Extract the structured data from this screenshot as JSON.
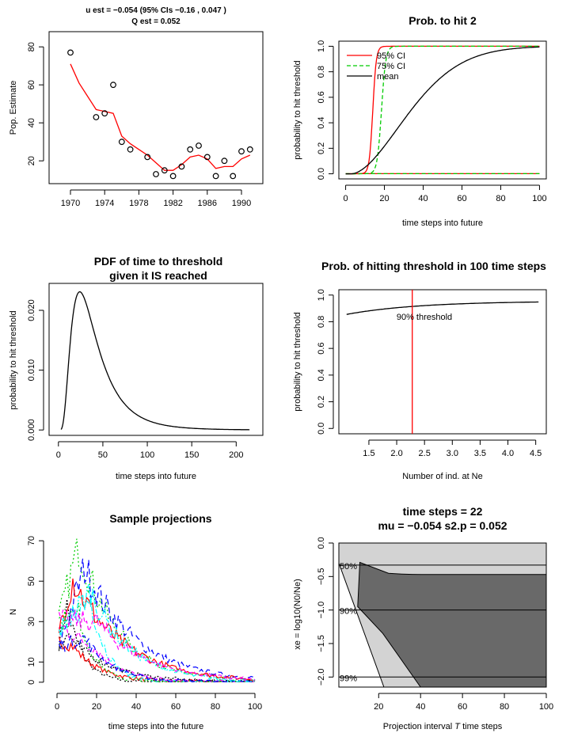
{
  "chart_data": [
    {
      "type": "line",
      "panel": "pop_estimate",
      "title_lines": [
        "u est =  −0.054  (95% CIs  −0.16 ,  0.047 )",
        "Q est =  0.052"
      ],
      "xlabel": "",
      "ylabel": "Pop. Estimate",
      "xlim": [
        1967.5,
        1992.5
      ],
      "ylim": [
        8,
        88
      ],
      "xticks": [
        "1970",
        "1974",
        "1978",
        "1982",
        "1986",
        "1990"
      ],
      "yticks": [
        "20",
        "40",
        "60",
        "80"
      ],
      "observed": {
        "x": [
          1970,
          1973,
          1974,
          1975,
          1976,
          1977,
          1979,
          1980,
          1981,
          1982,
          1983,
          1984,
          1985,
          1986,
          1987,
          1988,
          1989,
          1990,
          1991
        ],
        "y": [
          77,
          43,
          45,
          60,
          30,
          26,
          22,
          13,
          15,
          12,
          17,
          26,
          28,
          22,
          12,
          20,
          12,
          25,
          26
        ]
      },
      "fitted": {
        "x": [
          1970,
          1971,
          1972,
          1973,
          1974,
          1975,
          1976,
          1977,
          1978,
          1979,
          1980,
          1981,
          1982,
          1983,
          1984,
          1985,
          1986,
          1987,
          1988,
          1989,
          1990,
          1991
        ],
        "y": [
          71,
          61,
          54,
          47,
          46,
          45,
          33,
          29,
          26,
          23,
          19,
          15,
          15,
          18,
          22,
          23,
          21,
          16,
          17,
          17,
          21,
          23
        ]
      },
      "colors": {
        "fitted": "#ff0000",
        "observed": "#000000"
      }
    },
    {
      "type": "line",
      "panel": "prob_to_hit",
      "title": "Prob. to hit  2",
      "xlabel": "time steps into future",
      "ylabel": "probability to hit threshold",
      "xlim": [
        0,
        100
      ],
      "ylim": [
        0,
        1
      ],
      "xticks": [
        "0",
        "20",
        "40",
        "60",
        "80",
        "100"
      ],
      "yticks": [
        "0.0",
        "0.2",
        "0.4",
        "0.6",
        "0.8",
        "1.0"
      ],
      "legend": [
        "95% CI",
        "75% CI",
        "mean"
      ],
      "legend_position": "top-left",
      "colors": {
        "ci95": "#ff0000",
        "ci75": "#00cc00",
        "mean": "#000000"
      }
    },
    {
      "type": "line",
      "panel": "pdf_time_to_threshold",
      "title_lines": [
        "PDF of time to threshold",
        "given it IS reached"
      ],
      "xlabel": "time steps into future",
      "ylabel": "probability to hit threshold",
      "xlim": [
        0,
        220
      ],
      "ylim": [
        0,
        0.0235
      ],
      "xticks": [
        "0",
        "50",
        "100",
        "150",
        "200"
      ],
      "yticks": [
        "0.000",
        "0.010",
        "0.020"
      ]
    },
    {
      "type": "line",
      "panel": "prob_vs_ne",
      "title": "Prob. of hitting threshold  in  100  time steps",
      "xlabel": "Number of ind. at Ne",
      "ylabel": "probability to hit threshold",
      "xlim": [
        1.1,
        4.55
      ],
      "ylim": [
        0,
        1
      ],
      "xticks": [
        "1.5",
        "2.0",
        "2.5",
        "3.0",
        "3.5",
        "4.0",
        "4.5"
      ],
      "yticks": [
        "0.0",
        "0.2",
        "0.4",
        "0.6",
        "0.8",
        "1.0"
      ],
      "threshold_x": 2.28,
      "threshold_label": "90% threshold",
      "colors": {
        "line": "#000000",
        "threshold": "#ff0000"
      }
    },
    {
      "type": "line",
      "panel": "sample_projections",
      "title": "Sample projections",
      "xlabel": "time steps into the future",
      "ylabel": "N",
      "xlim": [
        0,
        100
      ],
      "ylim": [
        0,
        70
      ],
      "xticks": [
        "0",
        "20",
        "40",
        "60",
        "80",
        "100"
      ],
      "yticks": [
        "0",
        "10",
        "30",
        "50",
        "70"
      ],
      "series_colors": [
        "#000000",
        "#ff0000",
        "#00cd00",
        "#0000ff",
        "#00ffff",
        "#ff00ff"
      ]
    },
    {
      "type": "area",
      "panel": "uncertainty",
      "title_lines": [
        "time steps =  22",
        "mu =  −0.054  s2.p =  0.052"
      ],
      "xlabel_parts": [
        "Projection interval ",
        "T",
        " time steps"
      ],
      "ylabel": "xe = log10(N0/Ne)",
      "xlim": [
        1,
        100
      ],
      "ylim": [
        -2.15,
        0
      ],
      "xticks": [
        "20",
        "40",
        "60",
        "80",
        "100"
      ],
      "yticks": [
        "0.0",
        "−0.5",
        "−1.0",
        "−1.5",
        "−2.0"
      ],
      "hlines": [
        -0.33,
        -1.0,
        -2.0
      ],
      "hline_labels": [
        "50%",
        "90%",
        "99%"
      ],
      "colors": {
        "light": "#d3d3d3",
        "dark": "#696969"
      }
    }
  ]
}
